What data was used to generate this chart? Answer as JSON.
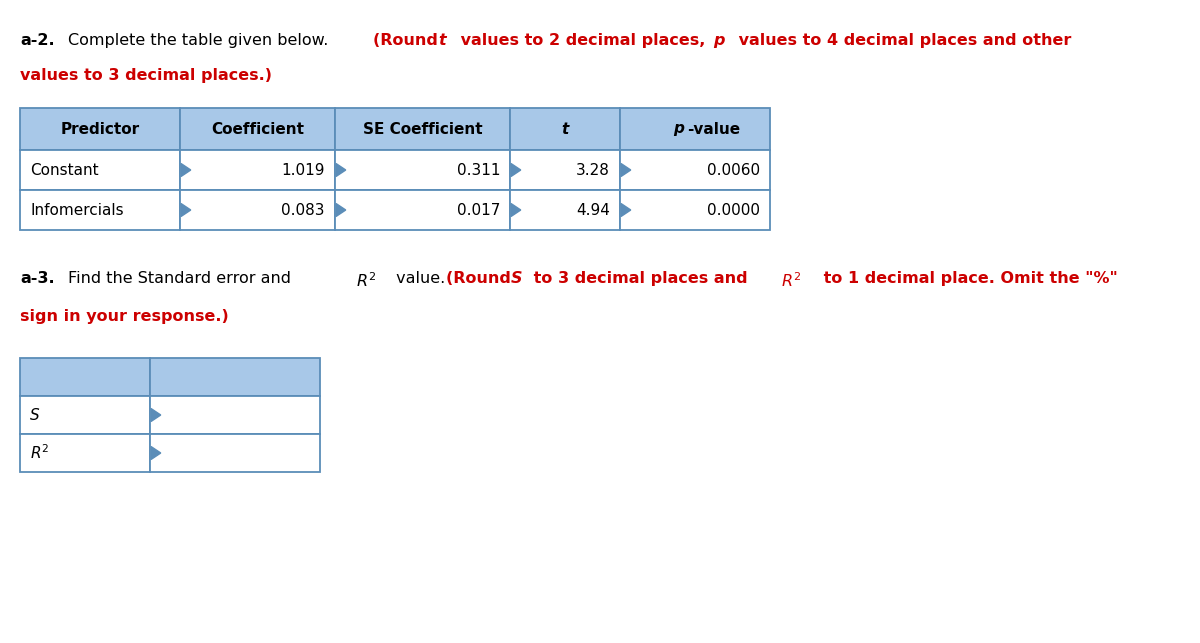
{
  "table1_headers": [
    "Predictor",
    "Coefficient",
    "SE Coefficient",
    "t",
    "p-value"
  ],
  "table1_rows": [
    [
      "Constant",
      "1.019",
      "0.311",
      "3.28",
      "0.0060"
    ],
    [
      "Infomercials",
      "0.083",
      "0.017",
      "4.94",
      "0.0000"
    ]
  ],
  "header_color": "#a8c8e8",
  "border_color": "#5b8db8",
  "red": "#cc0000",
  "black": "#000000",
  "white": "#ffffff",
  "background": "#ffffff",
  "fig_width": 12.0,
  "fig_height": 6.43,
  "dpi": 100
}
